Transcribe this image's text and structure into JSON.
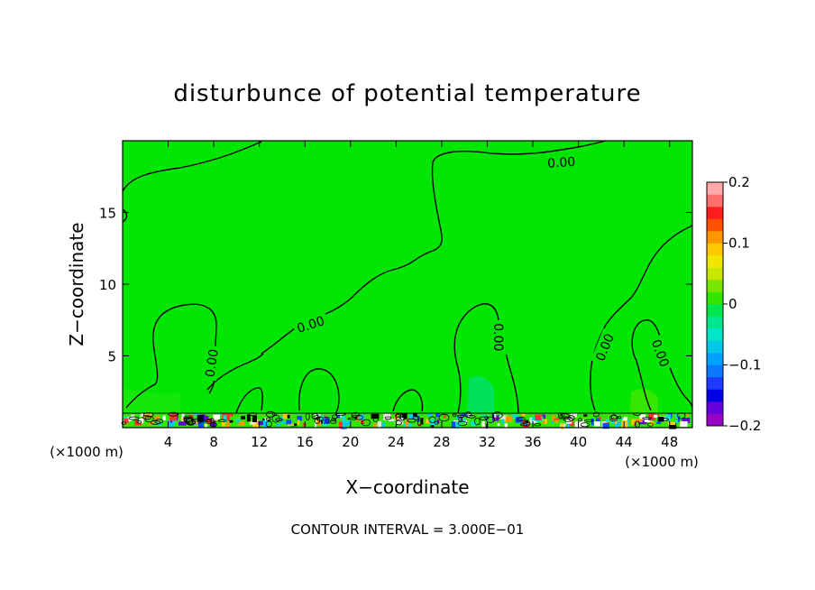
{
  "chart_data": {
    "type": "heatmap",
    "title": "disturbunce of potential temperature",
    "xlabel": "X−coordinate",
    "ylabel": "Z−coordinate",
    "x_unit": "(×1000 m)",
    "x_unit_right": "(×1000 m)",
    "xlim": [
      0,
      50
    ],
    "ylim": [
      0,
      20
    ],
    "xticks": [
      4,
      8,
      12,
      16,
      20,
      24,
      28,
      32,
      36,
      40,
      44,
      48
    ],
    "yticks": [
      5,
      10,
      15
    ],
    "footer": "CONTOUR INTERVAL = 3.000E−01",
    "colorbar": {
      "range": [
        -0.2,
        0.2
      ],
      "tick_values": [
        0.2,
        0.1,
        0,
        -0.1,
        -0.2
      ],
      "tick_labels": [
        "0.2",
        "0.1",
        "0",
        "−0.1",
        "−0.2"
      ],
      "colors": [
        "#9a00c8",
        "#6400dc",
        "#0000e6",
        "#1e3cff",
        "#0a78ff",
        "#00a0ff",
        "#00c8e6",
        "#00e6c8",
        "#00e68c",
        "#00e650",
        "#32e600",
        "#78e600",
        "#c8e600",
        "#f0e600",
        "#ffc800",
        "#ff9600",
        "#ff5000",
        "#ff1e1e",
        "#ff6e6e",
        "#ffaaaa"
      ]
    },
    "contour_labels": [
      {
        "text": "0.00",
        "x": 38.5,
        "z": 18.5,
        "angle": -4
      },
      {
        "text": "0.00",
        "x": 16.5,
        "z": 7.2,
        "angle": -18
      },
      {
        "text": "0.00",
        "x": 7.8,
        "z": 4.5,
        "angle": -82
      },
      {
        "text": "0.00",
        "x": 33.0,
        "z": 6.3,
        "angle": 90
      },
      {
        "text": "0.00",
        "x": 42.3,
        "z": 5.6,
        "angle": -68
      },
      {
        "text": "0.00",
        "x": 47.2,
        "z": 5.2,
        "angle": 70
      }
    ],
    "colors": {
      "background": "#00e600",
      "lowlevel": "#32e600",
      "contour": "#000000"
    }
  }
}
